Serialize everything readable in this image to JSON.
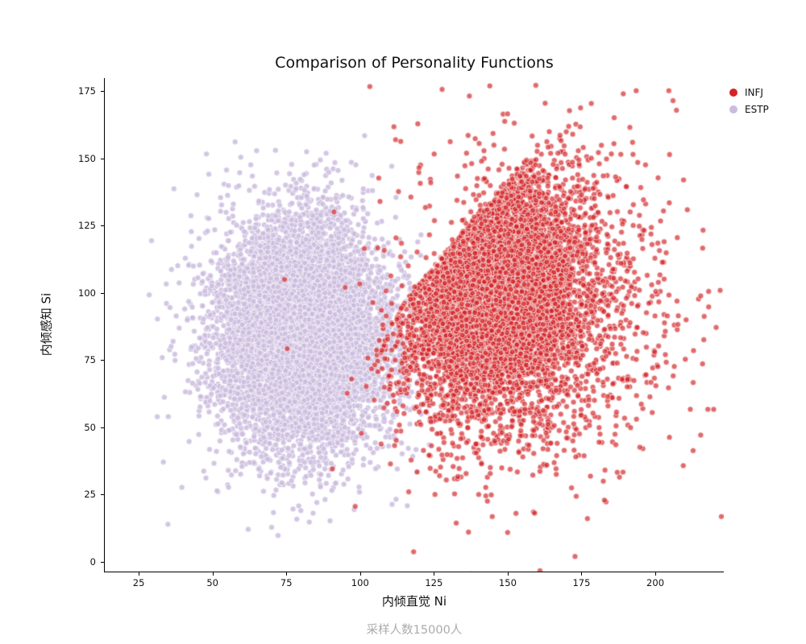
{
  "figure": {
    "background": "#ffffff"
  },
  "chart_data": {
    "type": "scatter",
    "title": "Comparison of Personality Functions",
    "xlabel": "内倾直觉 Ni",
    "ylabel": "内倾感知 Si",
    "caption": "采样人数15000人",
    "sample_size_total": 15000,
    "axis": {
      "xlim": [
        13.5,
        223.2
      ],
      "ylim": [
        -3.6,
        179.8
      ],
      "xticks": [
        25,
        50,
        75,
        100,
        125,
        150,
        175,
        200
      ],
      "yticks": [
        0,
        25,
        50,
        75,
        100,
        125,
        150,
        175
      ],
      "grid": false,
      "spines": [
        "left",
        "bottom"
      ]
    },
    "legend": {
      "position": "top-right-outside",
      "entries": [
        {
          "label": "INFJ",
          "color": "#d32326"
        },
        {
          "label": "ESTP",
          "color": "#cbbcde"
        }
      ]
    },
    "marker": {
      "radius": 3.5,
      "edge_color": "rgba(255,255,255,0.7)",
      "edge_width": 0.9
    },
    "rng_seed": 42,
    "series": [
      {
        "name": "ESTP",
        "count": 7500,
        "fill": "rgba(203,188,222,0.85)",
        "legend_color": "#cbbcde",
        "draw_order": 1,
        "components": [
          {
            "weight": 1.0,
            "mean_x": 80,
            "mean_y": 85,
            "std_x": 15,
            "std_y": 22
          }
        ]
      },
      {
        "name": "INFJ",
        "count": 7500,
        "fill": "rgba(211,35,38,0.68)",
        "legend_color": "#d32326",
        "draw_order": 2,
        "components": [
          {
            "weight": 0.85,
            "mean_x": 144,
            "mean_y": 102,
            "std_x": 16,
            "std_y": 23,
            "constraint": {
              "type": "y_below_line",
              "slope": 1.309,
              "intercept": -53.5
            }
          },
          {
            "weight": 0.15,
            "mean_x": 162,
            "mean_y": 95,
            "std_x": 26,
            "std_y": 33
          }
        ]
      }
    ]
  }
}
